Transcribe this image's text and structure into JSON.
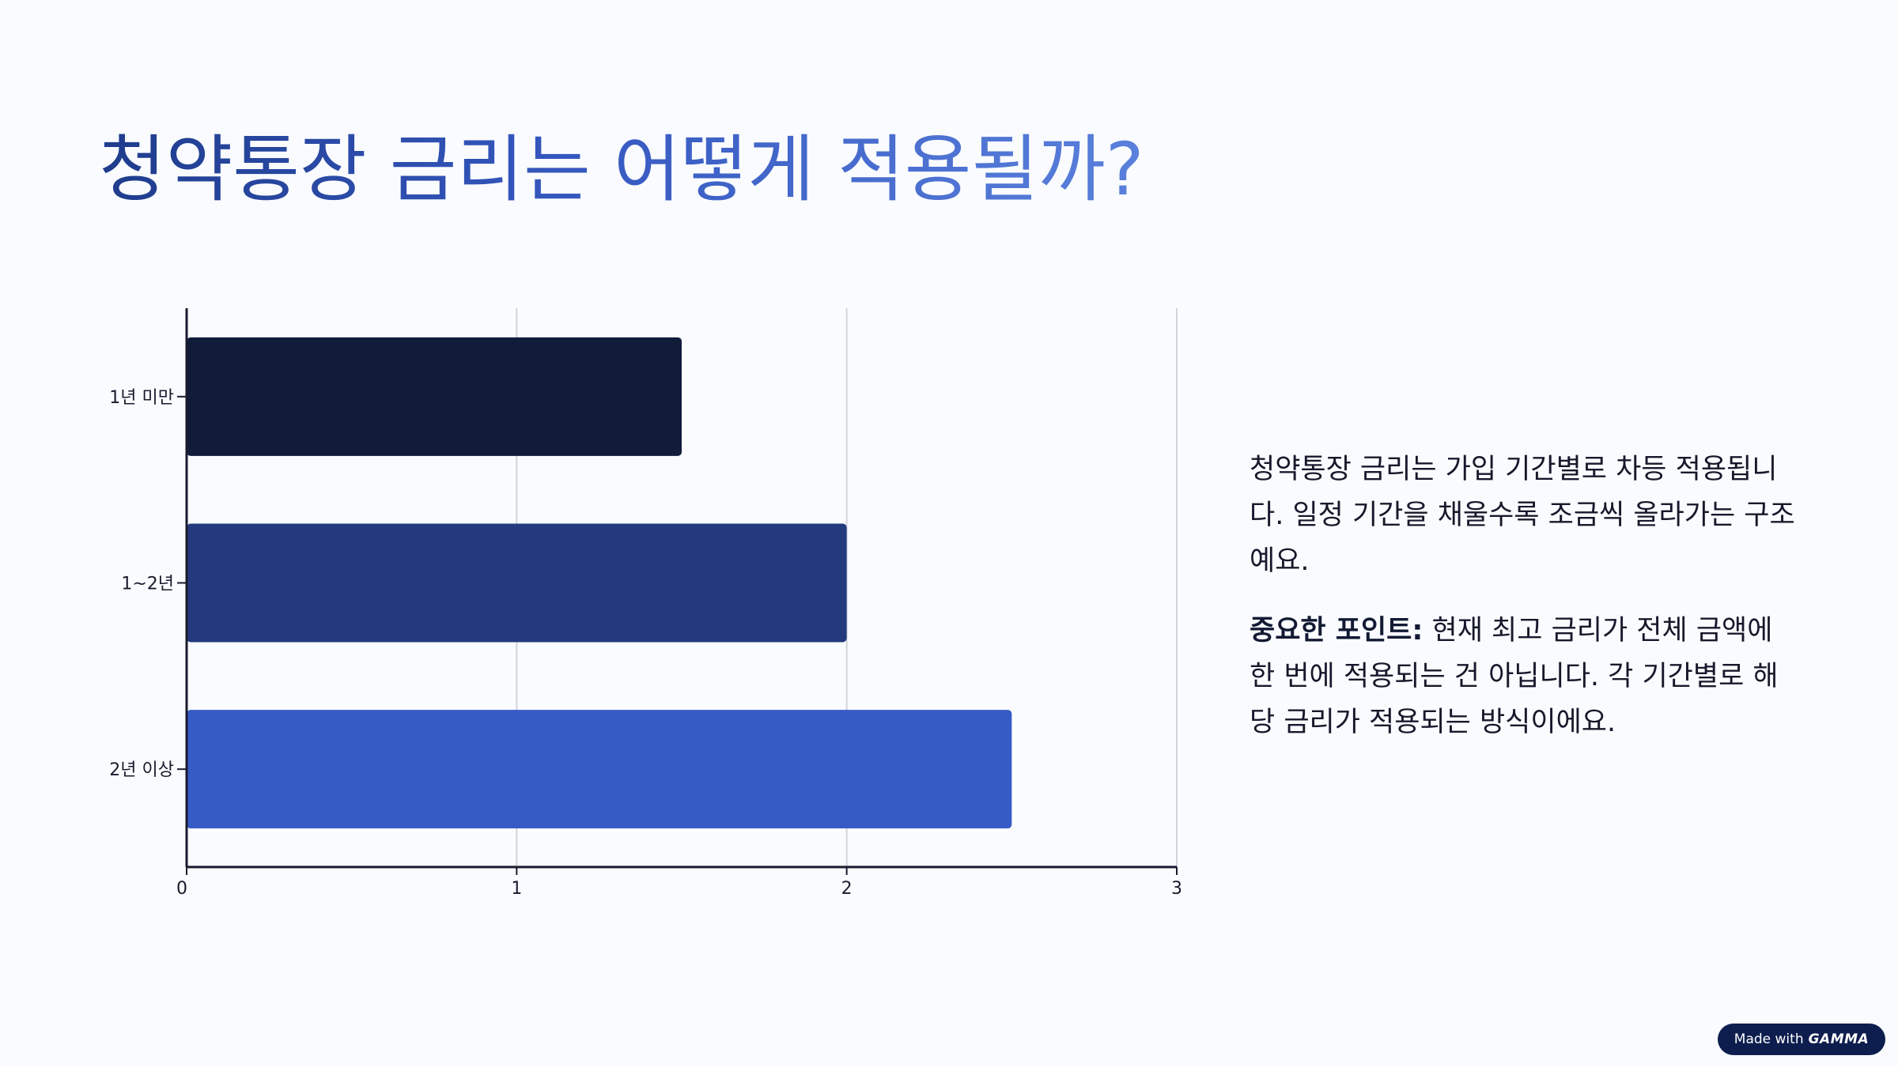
{
  "title": "청약통장 금리는 어떻게 적용될까?",
  "chart_data": {
    "type": "bar",
    "orientation": "horizontal",
    "categories": [
      "1년 미만",
      "1~2년",
      "2년 이상"
    ],
    "values": [
      1.5,
      2,
      2.5
    ],
    "bar_colors": [
      "#111c3b",
      "#233b7d",
      "#365bc4"
    ],
    "x_ticks": [
      "0",
      "1",
      "2",
      "3"
    ],
    "xlim": [
      0,
      3
    ],
    "grid": true,
    "title": "",
    "xlabel": "",
    "ylabel": ""
  },
  "description": {
    "paragraph1": "청약통장 금리는 가입 기간별로 차등 적용됩니다. 일정 기간을 채울수록 조금씩 올라가는 구조예요.",
    "point_label": "중요한 포인트:",
    "point_text": " 현재 최고 금리가 전체 금액에 한 번에 적용되는 건 아닙니다. 각 기간별로 해당 금리가 적용되는 방식이에요."
  },
  "badge": {
    "prefix": "Made with",
    "brand": "GAMMA"
  }
}
